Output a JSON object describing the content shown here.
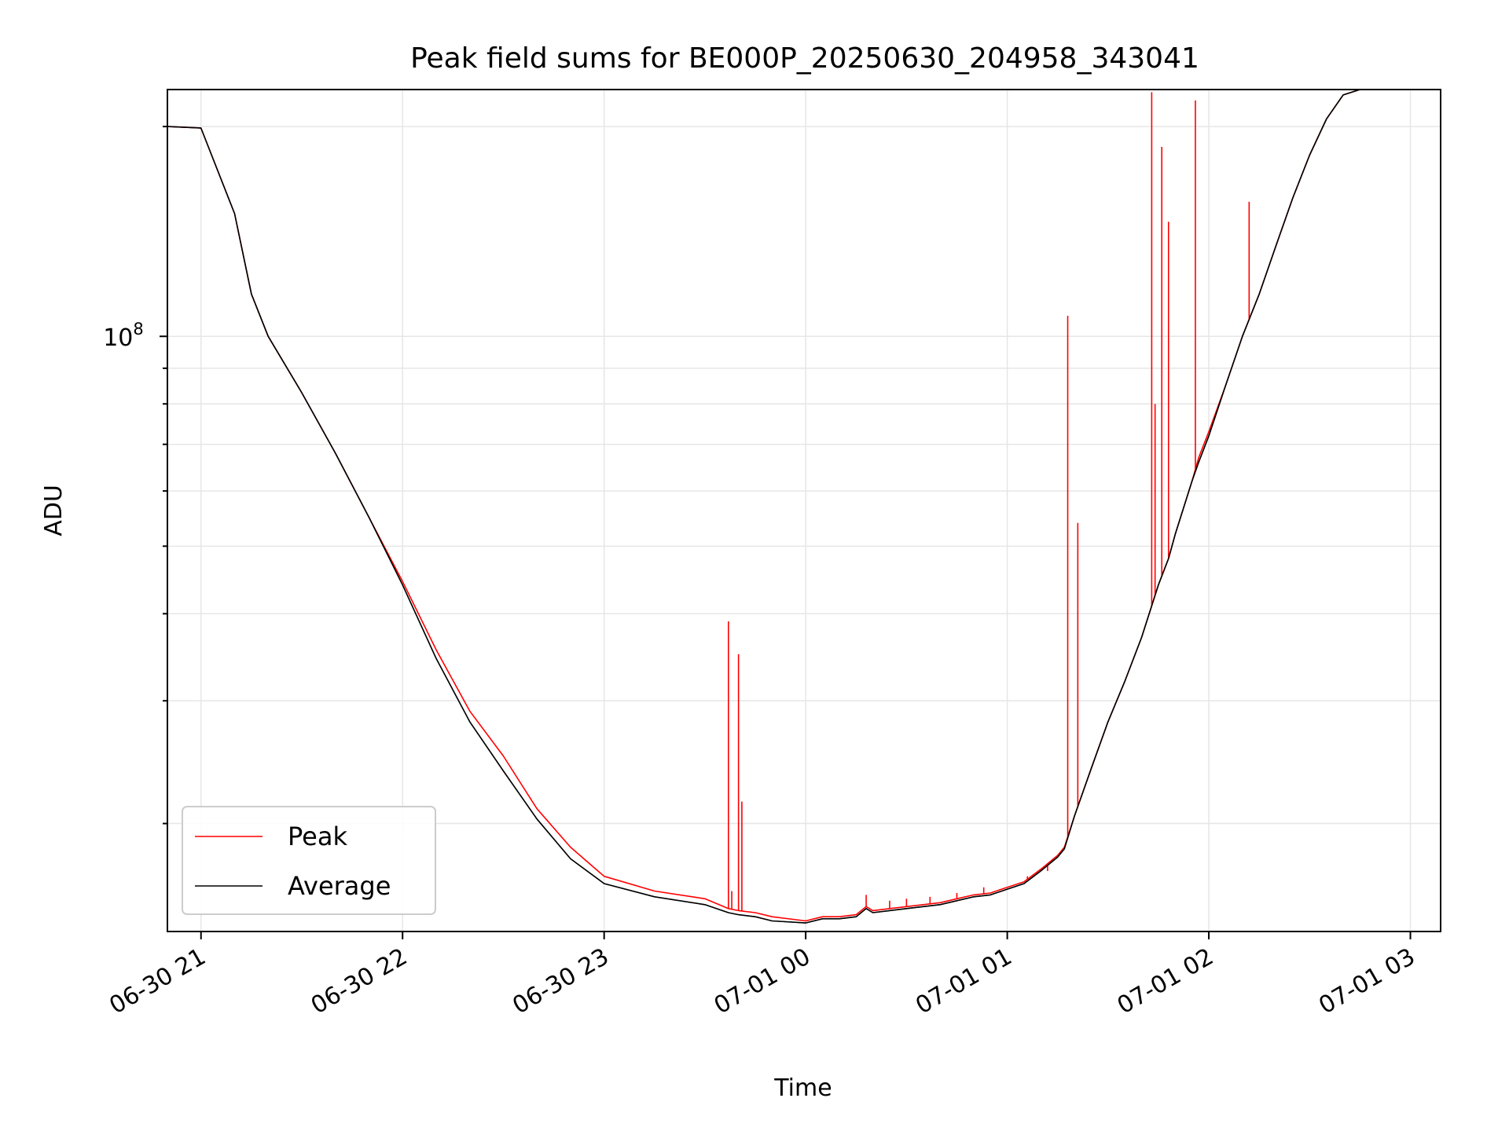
{
  "chart_data": {
    "type": "line",
    "title": "Peak field sums for BE000P_20250630_204958_343041",
    "xlabel": "Time",
    "ylabel": "ADU",
    "yscale": "log",
    "ytick_labels": [
      {
        "value": 100000000,
        "label": "10^8"
      }
    ],
    "x_tick_labels": [
      "06-30 21",
      "06-30 22",
      "06-30 23",
      "07-01 00",
      "07-01 01",
      "07-01 02",
      "07-01 03"
    ],
    "xlim": [
      "2025-06-30 20:50",
      "2025-07-01 03:09"
    ],
    "ylim": [
      14000000,
      226000000
    ],
    "grid": true,
    "legend_position": "lower-left",
    "colors": {
      "Peak": "#ff0000",
      "Average": "#000000"
    },
    "series": [
      {
        "name": "Peak",
        "x": [
          "2025-06-30 20:50",
          "2025-06-30 21:00",
          "2025-06-30 21:10",
          "2025-06-30 21:15",
          "2025-06-30 21:20",
          "2025-06-30 21:30",
          "2025-06-30 21:40",
          "2025-06-30 21:50",
          "2025-06-30 22:00",
          "2025-06-30 22:10",
          "2025-06-30 22:20",
          "2025-06-30 22:30",
          "2025-06-30 22:40",
          "2025-06-30 22:50",
          "2025-06-30 23:00",
          "2025-06-30 23:15",
          "2025-06-30 23:30",
          "2025-06-30 23:37",
          "2025-06-30 23:40",
          "2025-06-30 23:45",
          "2025-06-30 23:50",
          "2025-07-01 00:00",
          "2025-07-01 00:05",
          "2025-07-01 00:10",
          "2025-07-01 00:15",
          "2025-07-01 00:18",
          "2025-07-01 00:20",
          "2025-07-01 00:25",
          "2025-07-01 00:30",
          "2025-07-01 00:35",
          "2025-07-01 00:40",
          "2025-07-01 00:45",
          "2025-07-01 00:50",
          "2025-07-01 00:55",
          "2025-07-01 01:00",
          "2025-07-01 01:05",
          "2025-07-01 01:10",
          "2025-07-01 01:15",
          "2025-07-01 01:17",
          "2025-07-01 01:20",
          "2025-07-01 01:25",
          "2025-07-01 01:30",
          "2025-07-01 01:35",
          "2025-07-01 01:40",
          "2025-07-01 01:45",
          "2025-07-01 01:48",
          "2025-07-01 01:50",
          "2025-07-01 01:55",
          "2025-07-01 01:57",
          "2025-07-01 02:00",
          "2025-07-01 02:05",
          "2025-07-01 02:10",
          "2025-07-01 02:15",
          "2025-07-01 02:20",
          "2025-07-01 02:25",
          "2025-07-01 02:30",
          "2025-07-01 02:35",
          "2025-07-01 02:40",
          "2025-07-01 02:45",
          "2025-07-01 02:50",
          "2025-07-01 02:55",
          "2025-07-01 03:00",
          "2025-07-01 03:09"
        ],
        "y": [
          200000000,
          199000000,
          150000000,
          115000000,
          100000000,
          83000000,
          68000000,
          55000000,
          44500000,
          35500000,
          29000000,
          25000000,
          21000000,
          18500000,
          16800000,
          16000000,
          15600000,
          15100000,
          15000000,
          14900000,
          14700000,
          14500000,
          14700000,
          14700000,
          14800000,
          15200000,
          15000000,
          15100000,
          15200000,
          15300000,
          15400000,
          15600000,
          15800000,
          15900000,
          16200000,
          16500000,
          17200000,
          18000000,
          18500000,
          20500000,
          24000000,
          28000000,
          32000000,
          37000000,
          44000000,
          48000000,
          52000000,
          62000000,
          67000000,
          73000000,
          85000000,
          100000000,
          115000000,
          135000000,
          158000000,
          182000000,
          205000000,
          222000000,
          226000000,
          226000000,
          226000000,
          226000000,
          226000000
        ]
      },
      {
        "name": "Average",
        "x": [
          "2025-06-30 20:50",
          "2025-06-30 21:00",
          "2025-06-30 21:10",
          "2025-06-30 21:15",
          "2025-06-30 21:20",
          "2025-06-30 21:30",
          "2025-06-30 21:40",
          "2025-06-30 21:50",
          "2025-06-30 22:00",
          "2025-06-30 22:10",
          "2025-06-30 22:20",
          "2025-06-30 22:30",
          "2025-06-30 22:40",
          "2025-06-30 22:50",
          "2025-06-30 23:00",
          "2025-06-30 23:15",
          "2025-06-30 23:30",
          "2025-06-30 23:37",
          "2025-06-30 23:40",
          "2025-06-30 23:45",
          "2025-06-30 23:50",
          "2025-07-01 00:00",
          "2025-07-01 00:05",
          "2025-07-01 00:10",
          "2025-07-01 00:15",
          "2025-07-01 00:18",
          "2025-07-01 00:20",
          "2025-07-01 00:25",
          "2025-07-01 00:30",
          "2025-07-01 00:35",
          "2025-07-01 00:40",
          "2025-07-01 00:45",
          "2025-07-01 00:50",
          "2025-07-01 00:55",
          "2025-07-01 01:00",
          "2025-07-01 01:05",
          "2025-07-01 01:10",
          "2025-07-01 01:15",
          "2025-07-01 01:17",
          "2025-07-01 01:20",
          "2025-07-01 01:25",
          "2025-07-01 01:30",
          "2025-07-01 01:35",
          "2025-07-01 01:40",
          "2025-07-01 01:45",
          "2025-07-01 01:48",
          "2025-07-01 01:50",
          "2025-07-01 01:55",
          "2025-07-01 01:57",
          "2025-07-01 02:00",
          "2025-07-01 02:05",
          "2025-07-01 02:10",
          "2025-07-01 02:15",
          "2025-07-01 02:20",
          "2025-07-01 02:25",
          "2025-07-01 02:30",
          "2025-07-01 02:35",
          "2025-07-01 02:40",
          "2025-07-01 02:45",
          "2025-07-01 02:50",
          "2025-07-01 02:55",
          "2025-07-01 03:00",
          "2025-07-01 03:09"
        ],
        "y": [
          200000000,
          199000000,
          150000000,
          115000000,
          100000000,
          83000000,
          68000000,
          55000000,
          44000000,
          34500000,
          28000000,
          23800000,
          20300000,
          17800000,
          16400000,
          15700000,
          15300000,
          14900000,
          14800000,
          14700000,
          14500000,
          14400000,
          14600000,
          14600000,
          14700000,
          15100000,
          14900000,
          15000000,
          15100000,
          15200000,
          15300000,
          15500000,
          15700000,
          15800000,
          16100000,
          16400000,
          17100000,
          17900000,
          18400000,
          20500000,
          24000000,
          28000000,
          32000000,
          37000000,
          44000000,
          48000000,
          52000000,
          62000000,
          66000000,
          72000000,
          85000000,
          100000000,
          115000000,
          135000000,
          158000000,
          182000000,
          205000000,
          222000000,
          226000000,
          226000000,
          226000000,
          226000000,
          226000000
        ]
      }
    ],
    "peak_spikes": [
      {
        "x": "2025-06-30 23:37",
        "y": 39000000
      },
      {
        "x": "2025-06-30 23:38",
        "y": 16000000
      },
      {
        "x": "2025-06-30 23:40",
        "y": 35000000
      },
      {
        "x": "2025-06-30 23:41",
        "y": 21500000
      },
      {
        "x": "2025-07-01 00:18",
        "y": 15800000
      },
      {
        "x": "2025-07-01 00:25",
        "y": 15500000
      },
      {
        "x": "2025-07-01 00:30",
        "y": 15600000
      },
      {
        "x": "2025-07-01 00:37",
        "y": 15700000
      },
      {
        "x": "2025-07-01 00:45",
        "y": 15900000
      },
      {
        "x": "2025-07-01 00:53",
        "y": 16200000
      },
      {
        "x": "2025-07-01 01:06",
        "y": 16800000
      },
      {
        "x": "2025-07-01 01:12",
        "y": 17100000
      },
      {
        "x": "2025-07-01 01:18",
        "y": 107000000
      },
      {
        "x": "2025-07-01 01:21",
        "y": 54000000
      },
      {
        "x": "2025-07-01 01:43",
        "y": 224000000
      },
      {
        "x": "2025-07-01 01:44",
        "y": 80000000
      },
      {
        "x": "2025-07-01 01:46",
        "y": 187000000
      },
      {
        "x": "2025-07-01 01:48",
        "y": 146000000
      },
      {
        "x": "2025-07-01 01:56",
        "y": 218000000
      },
      {
        "x": "2025-07-01 02:12",
        "y": 156000000
      }
    ]
  }
}
